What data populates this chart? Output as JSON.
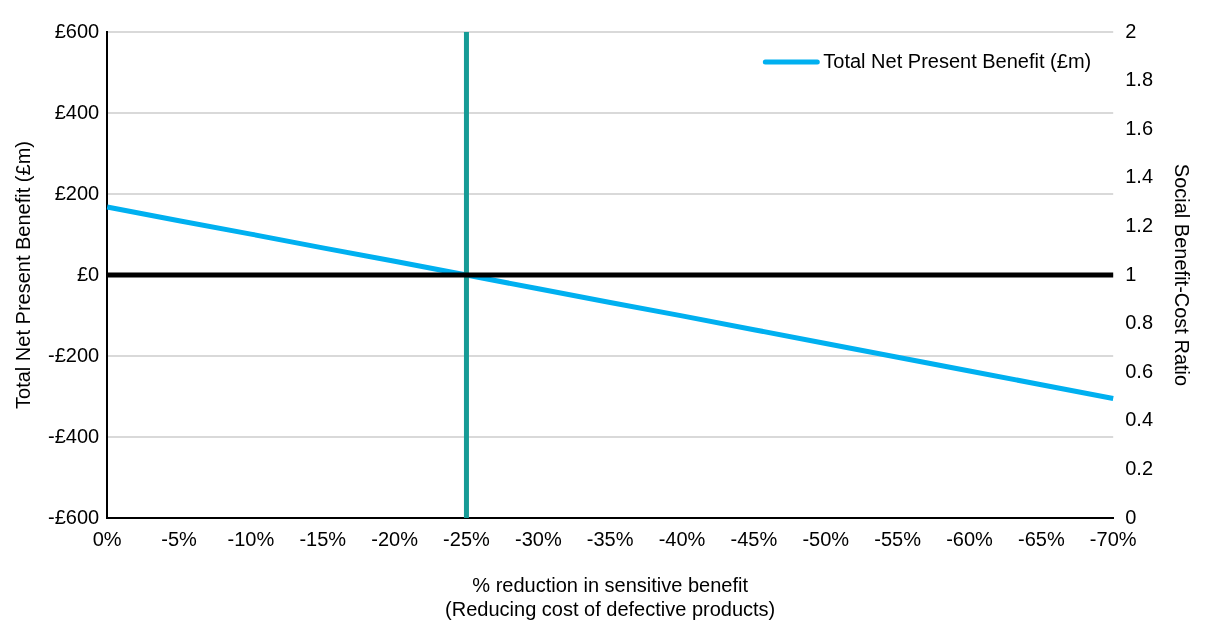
{
  "chart_data": {
    "type": "line",
    "xlabel": "% reduction in sensitive benefit\n(Reducing cost of defective products)",
    "ylabel": "Total Net Present Benefit (£m)",
    "y2label": "Social Benefit-Cost Ratio",
    "categories": [
      "0%",
      "-5%",
      "-10%",
      "-15%",
      "-20%",
      "-25%",
      "-30%",
      "-35%",
      "-40%",
      "-45%",
      "-50%",
      "-55%",
      "-60%",
      "-65%",
      "-70%"
    ],
    "series": [
      {
        "name": "Total Net Present Benefit (£m)",
        "color": "#00b0f0",
        "values": [
          168,
          134,
          101,
          67,
          34,
          0,
          -34,
          -68,
          -101,
          -135,
          -169,
          -203,
          -237,
          -271,
          -305
        ]
      }
    ],
    "ylim": [
      -600,
      600
    ],
    "yticks": [
      {
        "value": -600,
        "label": "-£600"
      },
      {
        "value": -400,
        "label": "-£400"
      },
      {
        "value": -200,
        "label": "-£200"
      },
      {
        "value": 0,
        "label": "£0"
      },
      {
        "value": 200,
        "label": "£200"
      },
      {
        "value": 400,
        "label": "£400"
      },
      {
        "value": 600,
        "label": "£600"
      }
    ],
    "y2lim": [
      0,
      2
    ],
    "y2ticks": [
      0,
      0.2,
      0.4,
      0.6,
      0.8,
      1,
      1.2,
      1.4,
      1.6,
      1.8,
      2
    ],
    "ref_lines": [
      {
        "axis": "x",
        "value": "-25%",
        "color": "#169b96"
      },
      {
        "axis": "y",
        "value": 0,
        "color": "#000000"
      }
    ],
    "grid": "y",
    "legend": "top right",
    "marker": "none",
    "line_style": "solid"
  }
}
